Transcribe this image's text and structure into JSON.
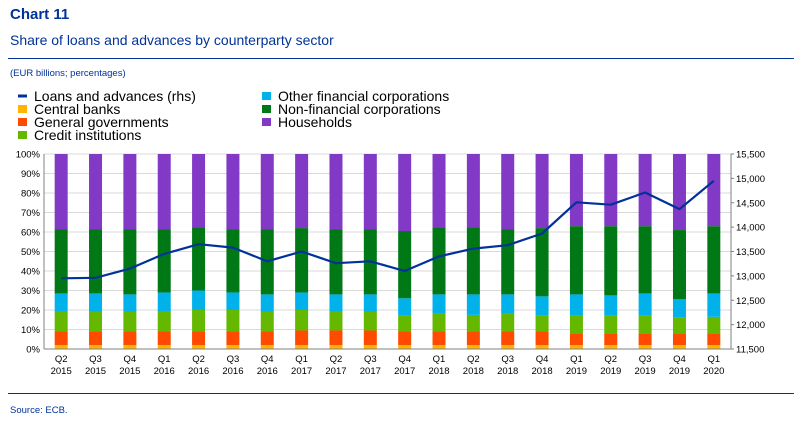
{
  "header": {
    "chart_number": "Chart 11",
    "title": "Share of loans and advances by counterparty sector",
    "unit_note": "(EUR billions; percentages)"
  },
  "footer": {
    "source": "Source: ECB."
  },
  "colors": {
    "central_banks": "#FFB400",
    "general_governments": "#FF4B00",
    "credit_institutions": "#65B800",
    "other_financial_corporations": "#00B1EA",
    "non_financial_corporations": "#007816",
    "households": "#8139C6",
    "loans_line": "#003299"
  },
  "chart_data": {
    "type": "bar",
    "stacked": true,
    "categories": [
      [
        "Q2",
        "2015"
      ],
      [
        "Q3",
        "2015"
      ],
      [
        "Q4",
        "2015"
      ],
      [
        "Q1",
        "2016"
      ],
      [
        "Q2",
        "2016"
      ],
      [
        "Q3",
        "2016"
      ],
      [
        "Q4",
        "2016"
      ],
      [
        "Q1",
        "2017"
      ],
      [
        "Q2",
        "2017"
      ],
      [
        "Q3",
        "2017"
      ],
      [
        "Q4",
        "2017"
      ],
      [
        "Q1",
        "2018"
      ],
      [
        "Q2",
        "2018"
      ],
      [
        "Q3",
        "2018"
      ],
      [
        "Q4",
        "2018"
      ],
      [
        "Q1",
        "2019"
      ],
      [
        "Q2",
        "2019"
      ],
      [
        "Q3",
        "2019"
      ],
      [
        "Q4",
        "2019"
      ],
      [
        "Q1",
        "2020"
      ]
    ],
    "left_axis": {
      "min": 0,
      "max": 100,
      "step": 10,
      "ticks": [
        "0%",
        "10%",
        "20%",
        "30%",
        "40%",
        "50%",
        "60%",
        "70%",
        "80%",
        "90%",
        "100%"
      ]
    },
    "right_axis": {
      "min": 11500,
      "max": 15500,
      "step": 500,
      "ticks": [
        "11,500",
        "12,000",
        "12,500",
        "13,000",
        "13,500",
        "14,000",
        "14,500",
        "15,000",
        "15,500"
      ]
    },
    "legend": [
      {
        "key": "loans_line",
        "label": "Loans and advances (rhs)",
        "kind": "line"
      },
      {
        "key": "central_banks",
        "label": "Central banks",
        "kind": "box"
      },
      {
        "key": "general_governments",
        "label": "General governments",
        "kind": "box"
      },
      {
        "key": "credit_institutions",
        "label": "Credit institutions",
        "kind": "box"
      },
      {
        "key": "other_financial_corporations",
        "label": "Other financial corporations",
        "kind": "box"
      },
      {
        "key": "non_financial_corporations",
        "label": "Non-financial corporations",
        "kind": "box"
      },
      {
        "key": "households",
        "label": "Households",
        "kind": "box"
      }
    ],
    "series": [
      {
        "key": "central_banks",
        "name": "Central banks",
        "values": [
          2,
          2,
          2,
          2,
          2,
          2,
          2,
          2,
          2,
          2,
          2,
          2,
          2,
          2,
          2,
          2,
          2,
          2,
          2,
          2
        ]
      },
      {
        "key": "general_governments",
        "name": "General governments",
        "values": [
          7,
          7,
          7,
          7,
          7,
          7,
          7,
          7.5,
          7.5,
          7.5,
          7,
          7,
          7,
          7,
          7,
          6,
          6,
          6,
          6,
          6
        ]
      },
      {
        "key": "credit_institutions",
        "name": "Credit institutions",
        "values": [
          10.5,
          10,
          10,
          10.5,
          11,
          11,
          10,
          10.5,
          9.5,
          9.5,
          8,
          9,
          8.5,
          9,
          8,
          9,
          9,
          9,
          8,
          8.5
        ]
      },
      {
        "key": "other_financial_corporations",
        "name": "Other financial corporations",
        "values": [
          9,
          9.5,
          9,
          9.5,
          10,
          9,
          9,
          9,
          9,
          9,
          9,
          10,
          10.5,
          10,
          10,
          11,
          10.5,
          11.5,
          9.5,
          12
        ]
      },
      {
        "key": "non_financial_corporations",
        "name": "Non-financial corporations",
        "values": [
          33,
          33,
          33.5,
          32.5,
          32.5,
          32.5,
          33.5,
          33,
          33.5,
          33.5,
          34.5,
          34.5,
          34.5,
          33.5,
          35,
          35,
          35.5,
          34.5,
          35.5,
          34.5
        ]
      },
      {
        "key": "households",
        "name": "Households",
        "values": [
          38.5,
          38.5,
          38.5,
          38.5,
          37.5,
          38.5,
          38.5,
          38,
          38.5,
          38.5,
          39.5,
          37.5,
          37.5,
          38.5,
          38,
          37,
          37,
          37,
          39,
          37
        ]
      }
    ],
    "line": {
      "key": "loans_line",
      "name": "Loans and advances (rhs)",
      "axis": "right",
      "values": [
        12950,
        12960,
        13150,
        13450,
        13650,
        13580,
        13300,
        13500,
        13260,
        13300,
        13100,
        13400,
        13560,
        13630,
        13870,
        14510,
        14460,
        14710,
        14370,
        14950
      ]
    }
  }
}
